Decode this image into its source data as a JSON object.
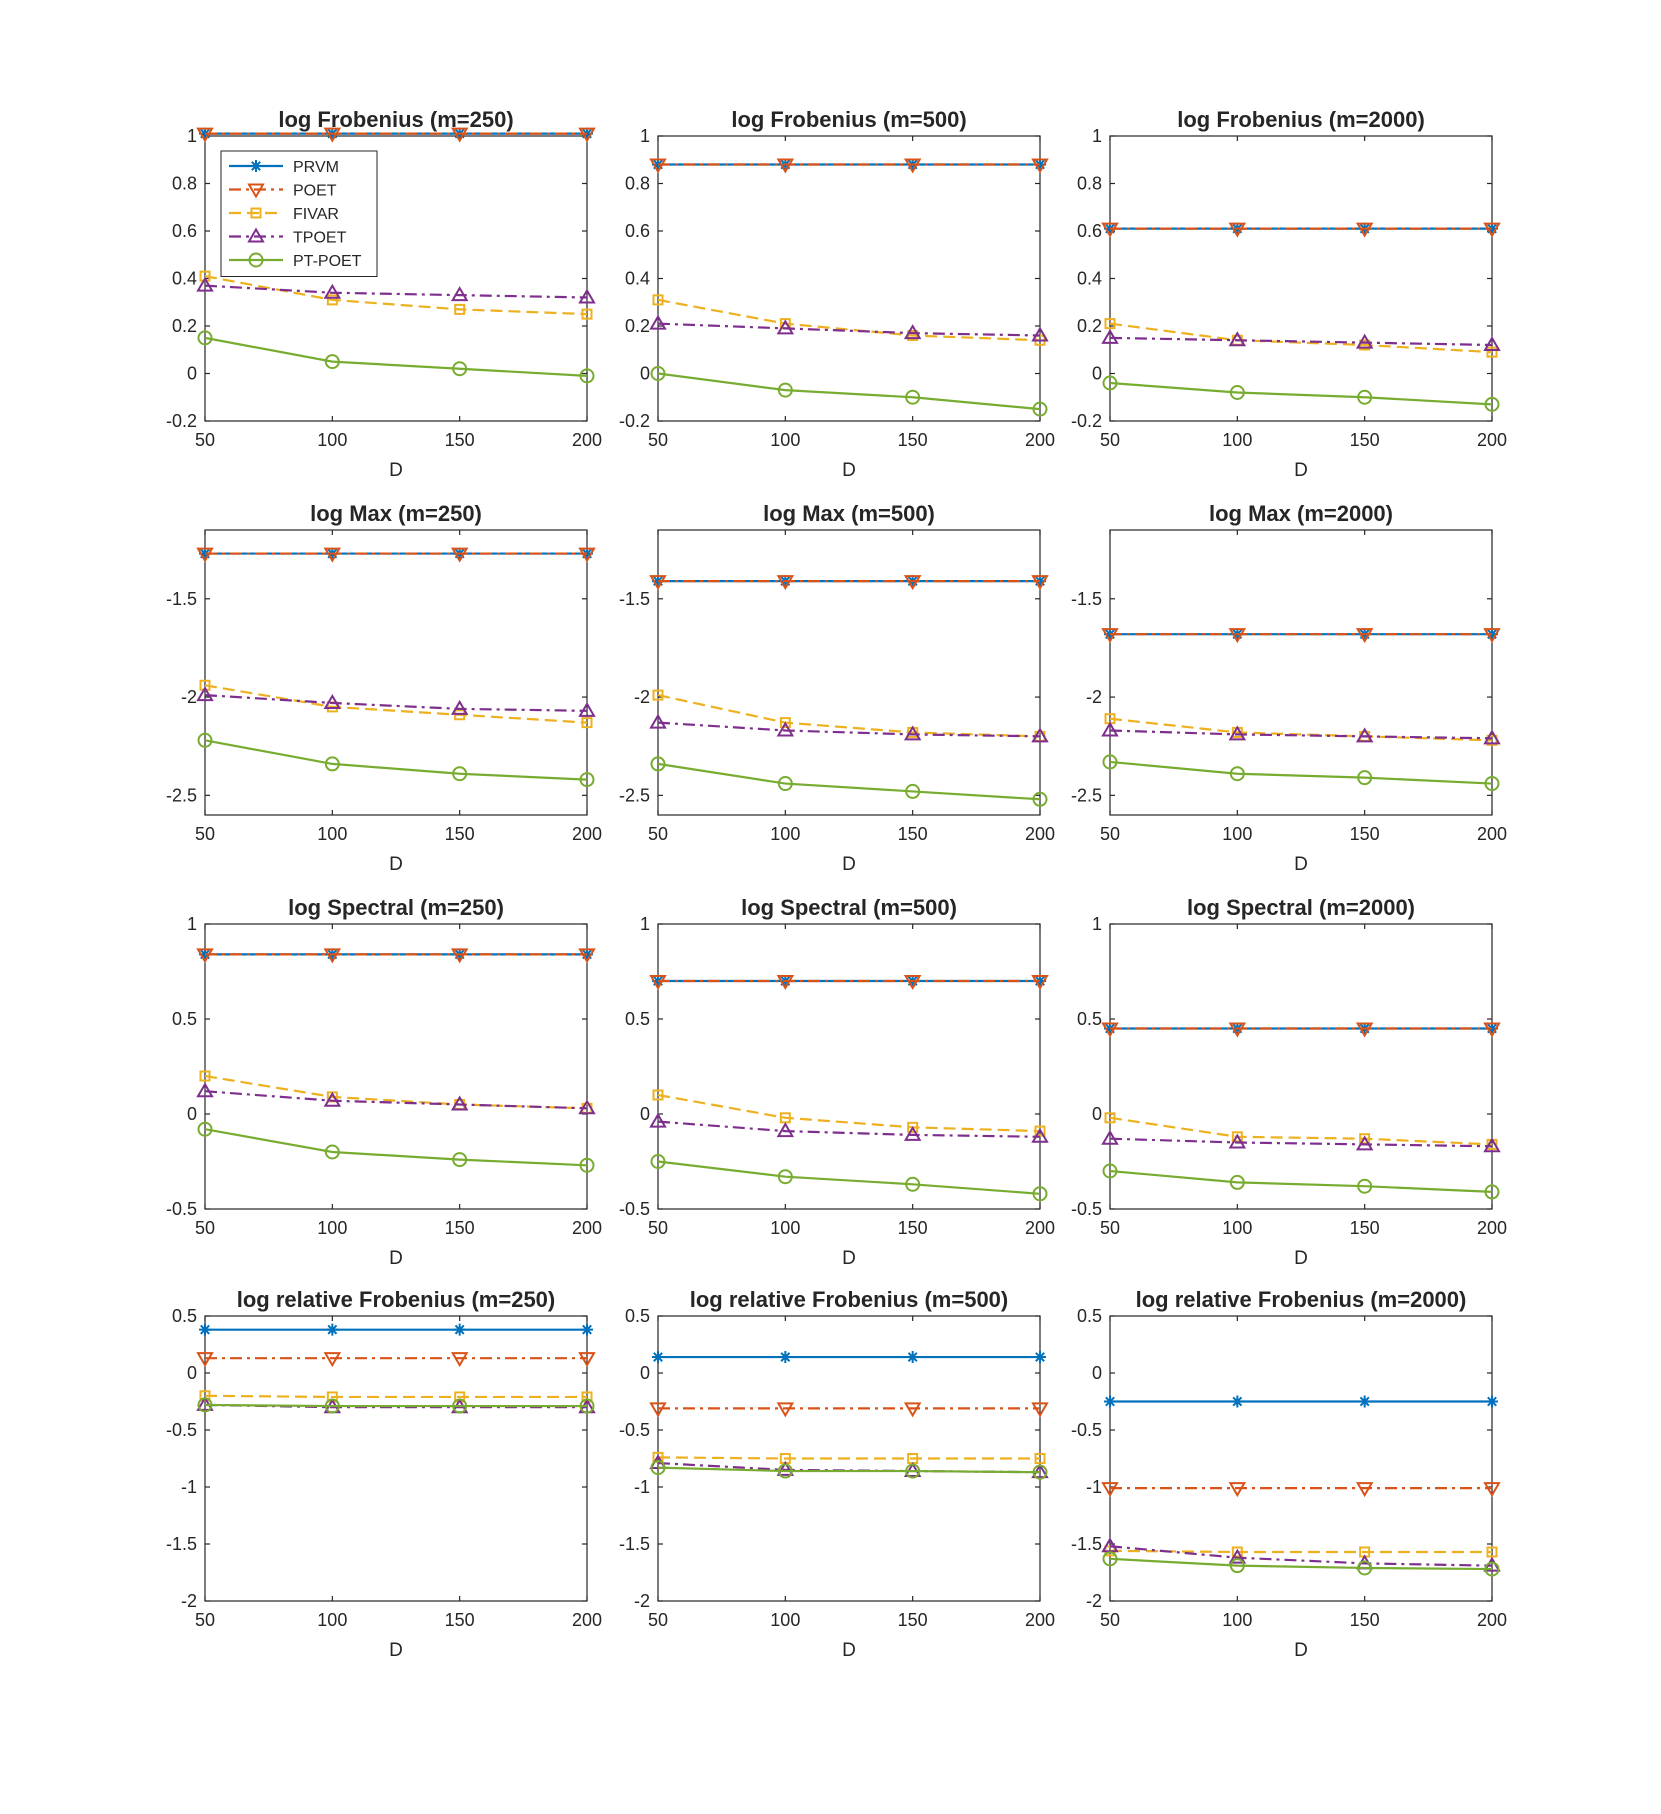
{
  "chart_data": {
    "type": "line",
    "x": [
      50,
      100,
      150,
      200
    ],
    "xlim": [
      50,
      200
    ],
    "xticks": [
      50,
      100,
      150,
      200
    ],
    "xlabel": "D",
    "legend": {
      "placement": "top-left of first panel",
      "entries": [
        "PRVM",
        "POET",
        "FIVAR",
        "TPOET",
        "PT-POET"
      ]
    },
    "series_styles": [
      {
        "name": "PRVM",
        "color": "#0072BD",
        "dash": "solid",
        "marker": "asterisk"
      },
      {
        "name": "POET",
        "color": "#D95319",
        "dash": "dashdot",
        "marker": "triangle-down"
      },
      {
        "name": "FIVAR",
        "color": "#EDB120",
        "dash": "dashed",
        "marker": "square"
      },
      {
        "name": "TPOET",
        "color": "#7E2F8E",
        "dash": "dashdot",
        "marker": "triangle-up"
      },
      {
        "name": "PT-POET",
        "color": "#77AC30",
        "dash": "solid",
        "marker": "circle"
      }
    ],
    "panels": [
      {
        "title": "log Frobenius (m=250)",
        "ylim": [
          -0.2,
          1.0
        ],
        "yticks": [
          -0.2,
          0,
          0.2,
          0.4,
          0.6,
          0.8,
          1
        ],
        "yticklabels": [
          "-0.2",
          "0",
          "0.2",
          "0.4",
          "0.6",
          "0.8",
          "1"
        ],
        "series": [
          {
            "name": "PRVM",
            "values": [
              1.01,
              1.01,
              1.01,
              1.01
            ]
          },
          {
            "name": "POET",
            "values": [
              1.01,
              1.01,
              1.01,
              1.01
            ]
          },
          {
            "name": "FIVAR",
            "values": [
              0.41,
              0.31,
              0.27,
              0.25
            ]
          },
          {
            "name": "TPOET",
            "values": [
              0.37,
              0.34,
              0.33,
              0.32
            ]
          },
          {
            "name": "PT-POET",
            "values": [
              0.15,
              0.05,
              0.02,
              -0.01
            ]
          }
        ]
      },
      {
        "title": "log Frobenius (m=500)",
        "ylim": [
          -0.2,
          1.0
        ],
        "yticks": [
          -0.2,
          0,
          0.2,
          0.4,
          0.6,
          0.8,
          1
        ],
        "yticklabels": [
          "-0.2",
          "0",
          "0.2",
          "0.4",
          "0.6",
          "0.8",
          "1"
        ],
        "series": [
          {
            "name": "PRVM",
            "values": [
              0.88,
              0.88,
              0.88,
              0.88
            ]
          },
          {
            "name": "POET",
            "values": [
              0.88,
              0.88,
              0.88,
              0.88
            ]
          },
          {
            "name": "FIVAR",
            "values": [
              0.31,
              0.21,
              0.16,
              0.14
            ]
          },
          {
            "name": "TPOET",
            "values": [
              0.21,
              0.19,
              0.17,
              0.16
            ]
          },
          {
            "name": "PT-POET",
            "values": [
              0.0,
              -0.07,
              -0.1,
              -0.15
            ]
          }
        ]
      },
      {
        "title": "log Frobenius (m=2000)",
        "ylim": [
          -0.2,
          1.0
        ],
        "yticks": [
          -0.2,
          0,
          0.2,
          0.4,
          0.6,
          0.8,
          1
        ],
        "yticklabels": [
          "-0.2",
          "0",
          "0.2",
          "0.4",
          "0.6",
          "0.8",
          "1"
        ],
        "series": [
          {
            "name": "PRVM",
            "values": [
              0.61,
              0.61,
              0.61,
              0.61
            ]
          },
          {
            "name": "POET",
            "values": [
              0.61,
              0.61,
              0.61,
              0.61
            ]
          },
          {
            "name": "FIVAR",
            "values": [
              0.21,
              0.14,
              0.12,
              0.09
            ]
          },
          {
            "name": "TPOET",
            "values": [
              0.15,
              0.14,
              0.13,
              0.12
            ]
          },
          {
            "name": "PT-POET",
            "values": [
              -0.04,
              -0.08,
              -0.1,
              -0.13
            ]
          }
        ]
      },
      {
        "title": "log Max (m=250)",
        "ylim": [
          -2.6,
          -1.15
        ],
        "yticks": [
          -2.5,
          -2,
          -1.5
        ],
        "yticklabels": [
          "-2.5",
          "-2",
          "-1.5"
        ],
        "series": [
          {
            "name": "PRVM",
            "values": [
              -1.27,
              -1.27,
              -1.27,
              -1.27
            ]
          },
          {
            "name": "POET",
            "values": [
              -1.27,
              -1.27,
              -1.27,
              -1.27
            ]
          },
          {
            "name": "FIVAR",
            "values": [
              -1.94,
              -2.05,
              -2.09,
              -2.13
            ]
          },
          {
            "name": "TPOET",
            "values": [
              -1.99,
              -2.03,
              -2.06,
              -2.07
            ]
          },
          {
            "name": "PT-POET",
            "values": [
              -2.22,
              -2.34,
              -2.39,
              -2.42
            ]
          }
        ]
      },
      {
        "title": "log Max (m=500)",
        "ylim": [
          -2.6,
          -1.15
        ],
        "yticks": [
          -2.5,
          -2,
          -1.5
        ],
        "yticklabels": [
          "-2.5",
          "-2",
          "-1.5"
        ],
        "series": [
          {
            "name": "PRVM",
            "values": [
              -1.41,
              -1.41,
              -1.41,
              -1.41
            ]
          },
          {
            "name": "POET",
            "values": [
              -1.41,
              -1.41,
              -1.41,
              -1.41
            ]
          },
          {
            "name": "FIVAR",
            "values": [
              -1.99,
              -2.13,
              -2.18,
              -2.2
            ]
          },
          {
            "name": "TPOET",
            "values": [
              -2.13,
              -2.17,
              -2.19,
              -2.2
            ]
          },
          {
            "name": "PT-POET",
            "values": [
              -2.34,
              -2.44,
              -2.48,
              -2.52
            ]
          }
        ]
      },
      {
        "title": "log Max (m=2000)",
        "ylim": [
          -2.6,
          -1.15
        ],
        "yticks": [
          -2.5,
          -2,
          -1.5
        ],
        "yticklabels": [
          "-2.5",
          "-2",
          "-1.5"
        ],
        "series": [
          {
            "name": "PRVM",
            "values": [
              -1.68,
              -1.68,
              -1.68,
              -1.68
            ]
          },
          {
            "name": "POET",
            "values": [
              -1.68,
              -1.68,
              -1.68,
              -1.68
            ]
          },
          {
            "name": "FIVAR",
            "values": [
              -2.11,
              -2.18,
              -2.2,
              -2.22
            ]
          },
          {
            "name": "TPOET",
            "values": [
              -2.17,
              -2.19,
              -2.2,
              -2.21
            ]
          },
          {
            "name": "PT-POET",
            "values": [
              -2.33,
              -2.39,
              -2.41,
              -2.44
            ]
          }
        ]
      },
      {
        "title": "log Spectral (m=250)",
        "ylim": [
          -0.5,
          1.0
        ],
        "yticks": [
          -0.5,
          0,
          0.5,
          1
        ],
        "yticklabels": [
          "-0.5",
          "0",
          "0.5",
          "1"
        ],
        "series": [
          {
            "name": "PRVM",
            "values": [
              0.84,
              0.84,
              0.84,
              0.84
            ]
          },
          {
            "name": "POET",
            "values": [
              0.84,
              0.84,
              0.84,
              0.84
            ]
          },
          {
            "name": "FIVAR",
            "values": [
              0.2,
              0.09,
              0.05,
              0.03
            ]
          },
          {
            "name": "TPOET",
            "values": [
              0.12,
              0.07,
              0.05,
              0.03
            ]
          },
          {
            "name": "PT-POET",
            "values": [
              -0.08,
              -0.2,
              -0.24,
              -0.27
            ]
          }
        ]
      },
      {
        "title": "log Spectral (m=500)",
        "ylim": [
          -0.5,
          1.0
        ],
        "yticks": [
          -0.5,
          0,
          0.5,
          1
        ],
        "yticklabels": [
          "-0.5",
          "0",
          "0.5",
          "1"
        ],
        "series": [
          {
            "name": "PRVM",
            "values": [
              0.7,
              0.7,
              0.7,
              0.7
            ]
          },
          {
            "name": "POET",
            "values": [
              0.7,
              0.7,
              0.7,
              0.7
            ]
          },
          {
            "name": "FIVAR",
            "values": [
              0.1,
              -0.02,
              -0.07,
              -0.09
            ]
          },
          {
            "name": "TPOET",
            "values": [
              -0.04,
              -0.09,
              -0.11,
              -0.12
            ]
          },
          {
            "name": "PT-POET",
            "values": [
              -0.25,
              -0.33,
              -0.37,
              -0.42
            ]
          }
        ]
      },
      {
        "title": "log Spectral (m=2000)",
        "ylim": [
          -0.5,
          1.0
        ],
        "yticks": [
          -0.5,
          0,
          0.5,
          1
        ],
        "yticklabels": [
          "-0.5",
          "0",
          "0.5",
          "1"
        ],
        "series": [
          {
            "name": "PRVM",
            "values": [
              0.45,
              0.45,
              0.45,
              0.45
            ]
          },
          {
            "name": "POET",
            "values": [
              0.45,
              0.45,
              0.45,
              0.45
            ]
          },
          {
            "name": "FIVAR",
            "values": [
              -0.02,
              -0.12,
              -0.13,
              -0.16
            ]
          },
          {
            "name": "TPOET",
            "values": [
              -0.13,
              -0.15,
              -0.16,
              -0.17
            ]
          },
          {
            "name": "PT-POET",
            "values": [
              -0.3,
              -0.36,
              -0.38,
              -0.41
            ]
          }
        ]
      },
      {
        "title": "log relative Frobenius (m=250)",
        "ylim": [
          -2.0,
          0.5
        ],
        "yticks": [
          -2,
          -1.5,
          -1,
          -0.5,
          0,
          0.5
        ],
        "yticklabels": [
          "-2",
          "-1.5",
          "-1",
          "-0.5",
          "0",
          "0.5"
        ],
        "series": [
          {
            "name": "PRVM",
            "values": [
              0.38,
              0.38,
              0.38,
              0.38
            ]
          },
          {
            "name": "POET",
            "values": [
              0.13,
              0.13,
              0.13,
              0.13
            ]
          },
          {
            "name": "FIVAR",
            "values": [
              -0.2,
              -0.21,
              -0.21,
              -0.21
            ]
          },
          {
            "name": "TPOET",
            "values": [
              -0.28,
              -0.3,
              -0.3,
              -0.3
            ]
          },
          {
            "name": "PT-POET",
            "values": [
              -0.28,
              -0.29,
              -0.29,
              -0.29
            ]
          }
        ]
      },
      {
        "title": "log relative Frobenius (m=500)",
        "ylim": [
          -2.0,
          0.5
        ],
        "yticks": [
          -2,
          -1.5,
          -1,
          -0.5,
          0,
          0.5
        ],
        "yticklabels": [
          "-2",
          "-1.5",
          "-1",
          "-0.5",
          "0",
          "0.5"
        ],
        "series": [
          {
            "name": "PRVM",
            "values": [
              0.14,
              0.14,
              0.14,
              0.14
            ]
          },
          {
            "name": "POET",
            "values": [
              -0.31,
              -0.31,
              -0.31,
              -0.31
            ]
          },
          {
            "name": "FIVAR",
            "values": [
              -0.74,
              -0.75,
              -0.75,
              -0.75
            ]
          },
          {
            "name": "TPOET",
            "values": [
              -0.79,
              -0.85,
              -0.86,
              -0.87
            ]
          },
          {
            "name": "PT-POET",
            "values": [
              -0.83,
              -0.86,
              -0.86,
              -0.87
            ]
          }
        ]
      },
      {
        "title": "log relative Frobenius (m=2000)",
        "ylim": [
          -2.0,
          0.5
        ],
        "yticks": [
          -2,
          -1.5,
          -1,
          -0.5,
          0,
          0.5
        ],
        "yticklabels": [
          "-2",
          "-1.5",
          "-1",
          "-0.5",
          "0",
          "0.5"
        ],
        "series": [
          {
            "name": "PRVM",
            "values": [
              -0.25,
              -0.25,
              -0.25,
              -0.25
            ]
          },
          {
            "name": "POET",
            "values": [
              -1.01,
              -1.01,
              -1.01,
              -1.01
            ]
          },
          {
            "name": "FIVAR",
            "values": [
              -1.56,
              -1.57,
              -1.57,
              -1.57
            ]
          },
          {
            "name": "TPOET",
            "values": [
              -1.52,
              -1.62,
              -1.67,
              -1.69
            ]
          },
          {
            "name": "PT-POET",
            "values": [
              -1.63,
              -1.69,
              -1.71,
              -1.72
            ]
          }
        ]
      }
    ]
  }
}
